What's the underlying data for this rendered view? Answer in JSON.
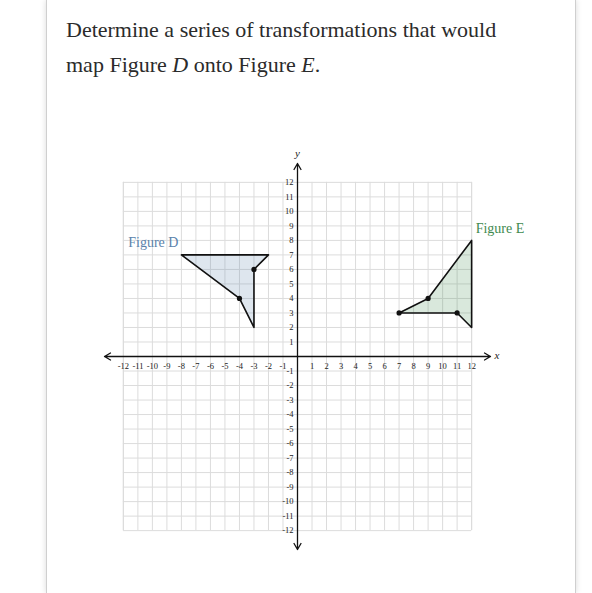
{
  "chart_data": {
    "type": "polygon",
    "title": "Determine a series of transformations that would map Figure D onto Figure E.",
    "x_label": "x",
    "y_label": "y",
    "xlim": [
      -13.3,
      13.3
    ],
    "ylim": [
      -13.3,
      13.3
    ],
    "xticks": [
      -12,
      -11,
      -10,
      -9,
      -8,
      -7,
      -6,
      -5,
      -4,
      -3,
      -2,
      -1,
      1,
      2,
      3,
      4,
      5,
      6,
      7,
      8,
      9,
      10,
      11,
      12
    ],
    "yticks": [
      -12,
      -11,
      -10,
      -9,
      -8,
      -7,
      -6,
      -5,
      -4,
      -3,
      -2,
      -1,
      1,
      2,
      3,
      4,
      5,
      6,
      7,
      8,
      9,
      10,
      11,
      12
    ],
    "grid": true,
    "series": [
      {
        "name": "Figure D",
        "color": "#5b82ab",
        "vertices": [
          [
            -8,
            7
          ],
          [
            -2,
            7
          ],
          [
            -3,
            6
          ],
          [
            -3,
            2
          ],
          [
            -4,
            4
          ]
        ],
        "marked": [
          [
            -3,
            6
          ],
          [
            -4,
            4
          ]
        ]
      },
      {
        "name": "Figure E",
        "color": "#3f8a4f",
        "vertices": [
          [
            12,
            8
          ],
          [
            9,
            4
          ],
          [
            7,
            3
          ],
          [
            11,
            3
          ],
          [
            12,
            2
          ]
        ],
        "marked": [
          [
            9,
            4
          ],
          [
            7,
            3
          ],
          [
            11,
            3
          ]
        ]
      }
    ]
  }
}
